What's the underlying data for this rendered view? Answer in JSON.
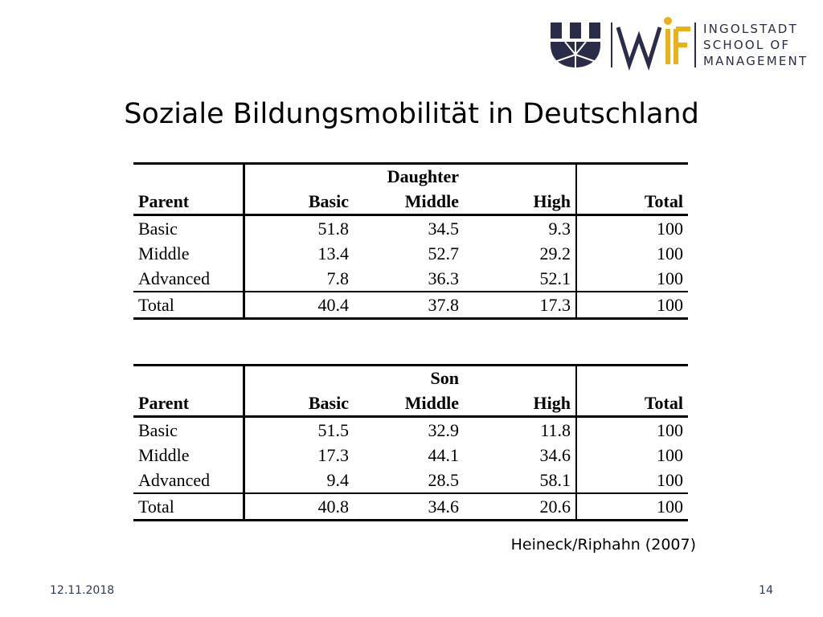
{
  "logo": {
    "line1": "INGOLSTADT",
    "line2": "SCHOOL OF",
    "line3": "MANAGEMENT",
    "wf_text": "WiF"
  },
  "title": "Soziale Bildungsmobilität in Deutschland",
  "colors": {
    "navy": "#2b2b4a",
    "gold": "#e8b21a",
    "text_blue": "#2b3a5c"
  },
  "tables": [
    {
      "group": "Daughter",
      "headers": [
        "Parent",
        "Basic",
        "Middle",
        "High",
        "Total"
      ],
      "rows": [
        [
          "Basic",
          "51.8",
          "34.5",
          "9.3",
          "100"
        ],
        [
          "Middle",
          "13.4",
          "52.7",
          "29.2",
          "100"
        ],
        [
          "Advanced",
          "7.8",
          "36.3",
          "52.1",
          "100"
        ]
      ],
      "total": [
        "Total",
        "40.4",
        "37.8",
        "17.3",
        "100"
      ]
    },
    {
      "group": "Son",
      "headers": [
        "Parent",
        "Basic",
        "Middle",
        "High",
        "Total"
      ],
      "rows": [
        [
          "Basic",
          "51.5",
          "32.9",
          "11.8",
          "100"
        ],
        [
          "Middle",
          "17.3",
          "44.1",
          "34.6",
          "100"
        ],
        [
          "Advanced",
          "9.4",
          "28.5",
          "58.1",
          "100"
        ]
      ],
      "total": [
        "Total",
        "40.8",
        "34.6",
        "20.6",
        "100"
      ]
    }
  ],
  "source": "Heineck/Riphahn (2007)",
  "footer": {
    "date": "12.11.2018",
    "page": "14"
  }
}
